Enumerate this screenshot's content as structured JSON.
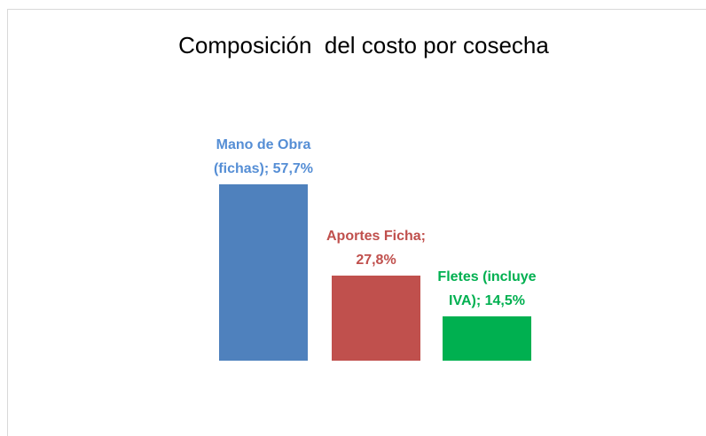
{
  "chart_data": {
    "type": "bar",
    "title": "Composición  del costo por cosecha",
    "values": [
      57.7,
      27.8,
      14.5
    ],
    "value_labels": [
      "Mano de Obra\n(fichas); 57,7%",
      "Aportes Ficha;\n27,8%",
      "Fletes (incluye\nIVA); 14,5%"
    ],
    "colors": [
      "#4f81bd",
      "#c0504d",
      "#00b050"
    ],
    "label_colors": [
      "#558ed5",
      "#c0504d",
      "#00b050"
    ]
  }
}
